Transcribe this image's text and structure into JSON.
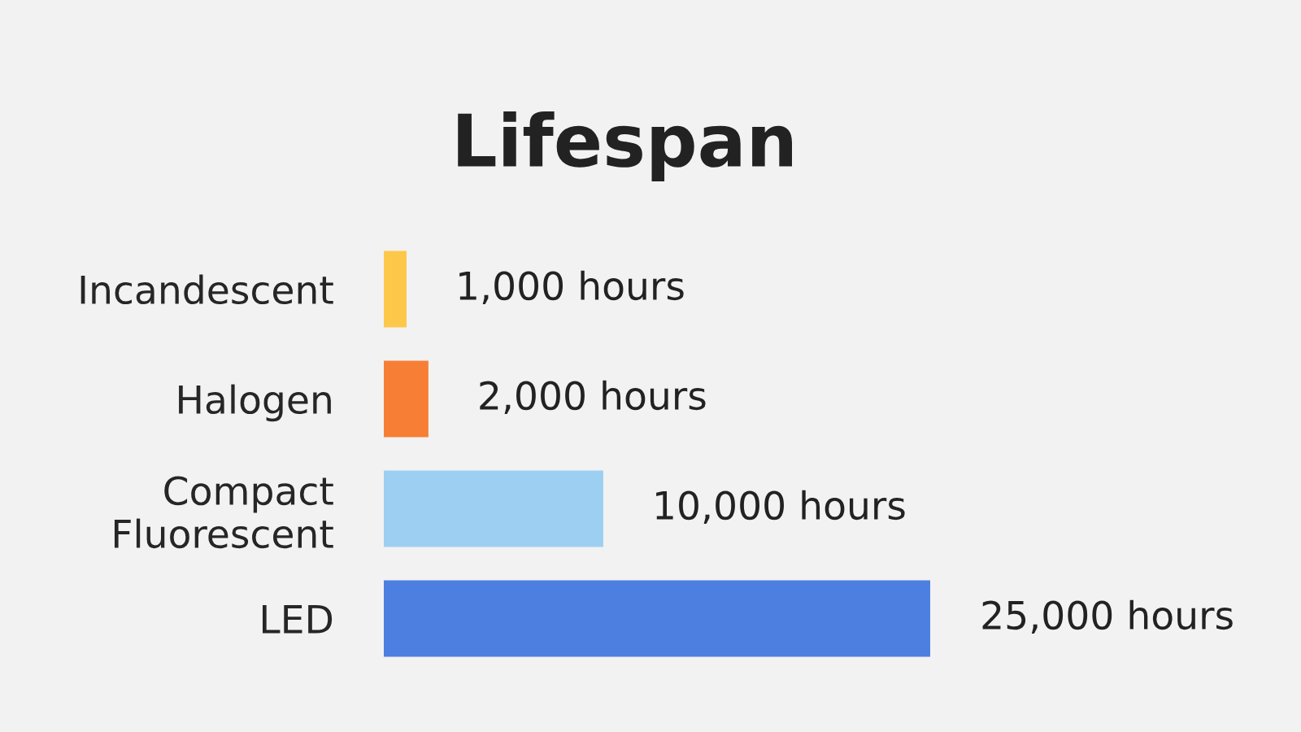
{
  "chart_data": {
    "type": "bar",
    "orientation": "horizontal",
    "title": "Lifespan",
    "categories": [
      "Incandescent",
      "Halogen",
      "Compact\nFluorescent",
      "LED"
    ],
    "values": [
      1000,
      2000,
      10000,
      25000
    ],
    "colors": [
      "#fdc84a",
      "#f77f35",
      "#9dcff2",
      "#4d7fe0"
    ],
    "value_labels": [
      "1,000 hours",
      "2,000 hours",
      "10,000 hours",
      "25,000 hours"
    ],
    "grid": false,
    "legend": false
  }
}
